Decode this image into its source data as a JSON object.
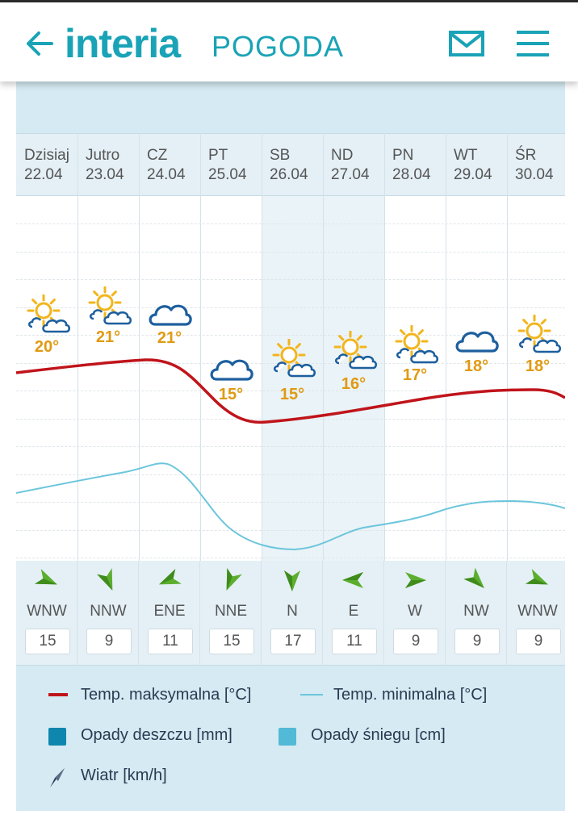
{
  "header": {
    "back_icon": "arrow-left-icon",
    "logo_brand": "interia",
    "logo_section": "POGODA",
    "mail_icon": "mail-icon",
    "menu_icon": "hamburger-menu-icon"
  },
  "days": [
    {
      "name": "Dzisiaj",
      "date": "22.04",
      "icon": "partly-sunny-icon",
      "temp": "20°"
    },
    {
      "name": "Jutro",
      "date": "23.04",
      "icon": "partly-sunny-icon",
      "temp": "21°"
    },
    {
      "name": "CZ",
      "date": "24.04",
      "icon": "cloud-icon",
      "temp": "21°"
    },
    {
      "name": "PT",
      "date": "25.04",
      "icon": "cloud-icon",
      "temp": "15°"
    },
    {
      "name": "SB",
      "date": "26.04",
      "icon": "partly-sunny-icon",
      "temp": "15°"
    },
    {
      "name": "ND",
      "date": "27.04",
      "icon": "partly-sunny-icon",
      "temp": "16°"
    },
    {
      "name": "PN",
      "date": "28.04",
      "icon": "partly-sunny-icon",
      "temp": "17°"
    },
    {
      "name": "WT",
      "date": "29.04",
      "icon": "cloud-icon",
      "temp": "18°"
    },
    {
      "name": "ŚR",
      "date": "30.04",
      "icon": "partly-sunny-icon",
      "temp": "18°"
    }
  ],
  "wind": [
    {
      "dir": "WNW",
      "speed": "15"
    },
    {
      "dir": "NNW",
      "speed": "9"
    },
    {
      "dir": "ENE",
      "speed": "11"
    },
    {
      "dir": "NNE",
      "speed": "15"
    },
    {
      "dir": "N",
      "speed": "17"
    },
    {
      "dir": "E",
      "speed": "11"
    },
    {
      "dir": "W",
      "speed": "9"
    },
    {
      "dir": "NW",
      "speed": "9"
    },
    {
      "dir": "WNW",
      "speed": "9"
    }
  ],
  "legend": {
    "max": "Temp. maksymalna [°C]",
    "min": "Temp. minimalna [°C]",
    "rain": "Opady deszczu [mm]",
    "snow": "Opady śniegu [cm]",
    "wind": "Wiatr [km/h]"
  },
  "colors": {
    "accent": "#1aa3b6",
    "max_line": "#c0141b",
    "min_line": "#6cc6dc",
    "rain": "#0f86ad",
    "snow": "#52b9d6",
    "temp_text": "#e09a12",
    "icon_blue": "#1d5f9e",
    "sun": "#f2b51d"
  }
}
